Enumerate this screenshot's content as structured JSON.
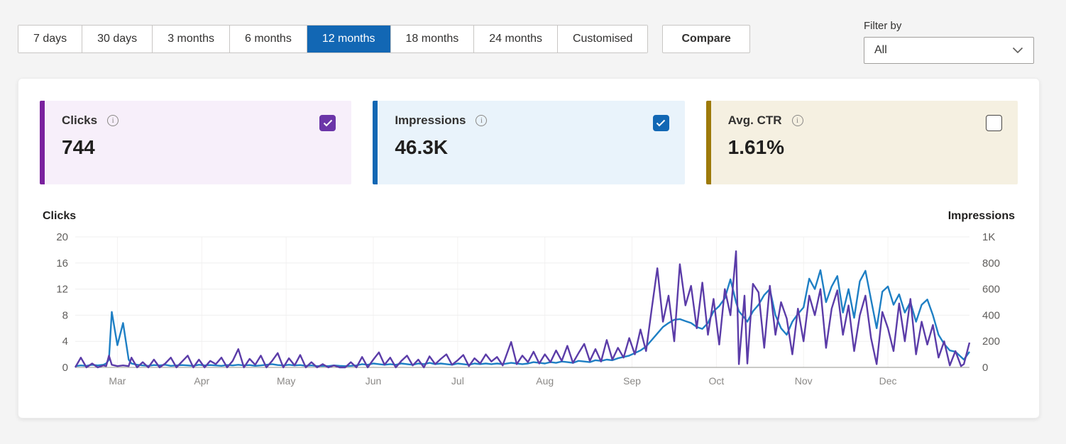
{
  "toolbar": {
    "date_ranges": [
      {
        "label": "7 days",
        "selected": false
      },
      {
        "label": "30 days",
        "selected": false
      },
      {
        "label": "3 months",
        "selected": false
      },
      {
        "label": "6 months",
        "selected": false
      },
      {
        "label": "12 months",
        "selected": true
      },
      {
        "label": "18 months",
        "selected": false
      },
      {
        "label": "24 months",
        "selected": false
      },
      {
        "label": "Customised",
        "selected": false
      }
    ],
    "selected_bg": "#1267b4",
    "compare_label": "Compare",
    "filter": {
      "label": "Filter by",
      "value": "All"
    }
  },
  "cards": [
    {
      "label": "Clicks",
      "value": "744",
      "checked": true,
      "accent": "#7a219e",
      "bg": "#f7effa",
      "checkbox_color": "#6b35a8",
      "info_icon": "info-icon"
    },
    {
      "label": "Impressions",
      "value": "46.3K",
      "checked": true,
      "accent": "#1267b4",
      "bg": "#e9f3fb",
      "checkbox_color": "#1267b4",
      "info_icon": "info-icon"
    },
    {
      "label": "Avg. CTR",
      "value": "1.61%",
      "checked": false,
      "accent": "#9d7a0a",
      "bg": "#f5f0e1",
      "checkbox_color": null,
      "info_icon": "info-icon"
    }
  ],
  "chart": {
    "left_axis_label": "Clicks",
    "right_axis_label": "Impressions"
  },
  "chart_data": {
    "type": "line",
    "title": "Clicks and Impressions over 12 months (daily)",
    "legend_position": "none",
    "grid": "horizontal",
    "series_meta": [
      {
        "name": "Clicks",
        "color": "#5b3ca8",
        "axis": "left",
        "ylim": [
          0,
          20
        ]
      },
      {
        "name": "Impressions",
        "color": "#1e7fc4",
        "axis": "right",
        "ylim": [
          0,
          1000
        ]
      }
    ],
    "left_ticks": [
      0,
      4,
      8,
      12,
      16,
      20
    ],
    "right_tick_labels": [
      "0",
      "200",
      "400",
      "600",
      "800",
      "1K"
    ],
    "x_domain_days": [
      0,
      318
    ],
    "months": [
      {
        "label": "Mar",
        "day": 15
      },
      {
        "label": "Apr",
        "day": 45
      },
      {
        "label": "May",
        "day": 75
      },
      {
        "label": "Jun",
        "day": 106
      },
      {
        "label": "Jul",
        "day": 136
      },
      {
        "label": "Aug",
        "day": 167
      },
      {
        "label": "Sep",
        "day": 198
      },
      {
        "label": "Oct",
        "day": 228
      },
      {
        "label": "Nov",
        "day": 259
      },
      {
        "label": "Dec",
        "day": 289
      }
    ],
    "points_format": [
      "day",
      "clicks",
      "impressions"
    ],
    "points": [
      [
        0,
        0,
        10
      ],
      [
        2,
        1.5,
        15
      ],
      [
        4,
        0,
        12
      ],
      [
        6,
        0.6,
        20
      ],
      [
        8,
        0,
        15
      ],
      [
        10,
        0.3,
        20
      ],
      [
        11,
        0.2,
        30
      ],
      [
        12,
        1.8,
        60
      ],
      [
        13,
        0.4,
        425
      ],
      [
        15,
        0.2,
        170
      ],
      [
        17,
        0.3,
        340
      ],
      [
        19,
        0.2,
        60
      ],
      [
        20,
        1.5,
        30
      ],
      [
        22,
        0,
        20
      ],
      [
        24,
        0.8,
        15
      ],
      [
        26,
        0,
        12
      ],
      [
        28,
        1.2,
        18
      ],
      [
        30,
        0,
        15
      ],
      [
        32,
        0.6,
        20
      ],
      [
        34,
        1.5,
        12
      ],
      [
        36,
        0,
        15
      ],
      [
        38,
        0.9,
        18
      ],
      [
        40,
        1.8,
        15
      ],
      [
        42,
        0,
        12
      ],
      [
        44,
        1.2,
        20
      ],
      [
        46,
        0,
        15
      ],
      [
        48,
        1,
        18
      ],
      [
        50,
        0.5,
        15
      ],
      [
        52,
        1.5,
        12
      ],
      [
        54,
        0,
        18
      ],
      [
        56,
        1,
        15
      ],
      [
        58,
        2.8,
        20
      ],
      [
        60,
        0,
        15
      ],
      [
        62,
        1.3,
        18
      ],
      [
        64,
        0.4,
        12
      ],
      [
        66,
        1.8,
        15
      ],
      [
        68,
        0,
        20
      ],
      [
        70,
        1,
        25
      ],
      [
        72,
        2.2,
        18
      ],
      [
        74,
        0,
        15
      ],
      [
        76,
        1.4,
        20
      ],
      [
        78,
        0.3,
        15
      ],
      [
        80,
        1.9,
        18
      ],
      [
        82,
        0,
        12
      ],
      [
        84,
        0.8,
        15
      ],
      [
        86,
        0,
        10
      ],
      [
        88,
        0.5,
        12
      ],
      [
        90,
        0,
        10
      ],
      [
        92,
        0.3,
        15
      ],
      [
        94,
        0,
        12
      ],
      [
        96,
        0,
        10
      ],
      [
        98,
        0.8,
        12
      ],
      [
        100,
        0,
        15
      ],
      [
        102,
        1.6,
        25
      ],
      [
        104,
        0,
        20
      ],
      [
        106,
        1.2,
        30
      ],
      [
        108,
        2.3,
        25
      ],
      [
        110,
        0.4,
        20
      ],
      [
        112,
        1.5,
        25
      ],
      [
        114,
        0,
        20
      ],
      [
        116,
        1,
        30
      ],
      [
        118,
        1.8,
        25
      ],
      [
        120,
        0.3,
        20
      ],
      [
        122,
        1.2,
        30
      ],
      [
        124,
        0,
        25
      ],
      [
        126,
        1.7,
        35
      ],
      [
        128,
        0.5,
        25
      ],
      [
        130,
        1.3,
        30
      ],
      [
        132,
        2,
        25
      ],
      [
        134,
        0.4,
        20
      ],
      [
        136,
        1.1,
        30
      ],
      [
        138,
        1.9,
        25
      ],
      [
        140,
        0.2,
        20
      ],
      [
        142,
        1.4,
        30
      ],
      [
        144,
        0.6,
        25
      ],
      [
        146,
        2,
        30
      ],
      [
        148,
        0.9,
        25
      ],
      [
        150,
        1.6,
        30
      ],
      [
        152,
        0.3,
        25
      ],
      [
        155,
        3.9,
        35
      ],
      [
        157,
        0.5,
        30
      ],
      [
        159,
        1.8,
        25
      ],
      [
        161,
        0.8,
        30
      ],
      [
        163,
        2.4,
        40
      ],
      [
        165,
        0.6,
        35
      ],
      [
        167,
        2,
        30
      ],
      [
        169,
        0.8,
        40
      ],
      [
        171,
        2.6,
        35
      ],
      [
        173,
        1,
        45
      ],
      [
        175,
        3.3,
        40
      ],
      [
        177,
        0.7,
        35
      ],
      [
        179,
        2.2,
        50
      ],
      [
        181,
        3.6,
        45
      ],
      [
        183,
        1,
        40
      ],
      [
        185,
        2.8,
        55
      ],
      [
        187,
        0.9,
        50
      ],
      [
        189,
        4.2,
        60
      ],
      [
        191,
        1.2,
        55
      ],
      [
        193,
        3,
        70
      ],
      [
        195,
        1.5,
        80
      ],
      [
        197,
        4.5,
        90
      ],
      [
        199,
        2,
        110
      ],
      [
        201,
        5.8,
        130
      ],
      [
        203,
        2.5,
        160
      ],
      [
        205,
        9,
        210
      ],
      [
        207,
        15.2,
        260
      ],
      [
        209,
        7,
        310
      ],
      [
        211,
        11,
        340
      ],
      [
        213,
        4,
        365
      ],
      [
        215,
        15.8,
        370
      ],
      [
        217,
        9.5,
        355
      ],
      [
        219,
        12.5,
        340
      ],
      [
        221,
        6,
        310
      ],
      [
        223,
        13,
        295
      ],
      [
        225,
        5,
        340
      ],
      [
        227,
        10.5,
        430
      ],
      [
        229,
        3.5,
        470
      ],
      [
        231,
        12,
        530
      ],
      [
        233,
        8,
        675
      ],
      [
        235,
        17.8,
        500
      ],
      [
        236,
        0.5,
        430
      ],
      [
        238,
        11,
        380
      ],
      [
        239,
        0.6,
        350
      ],
      [
        241,
        12.8,
        430
      ],
      [
        243,
        11.5,
        480
      ],
      [
        245,
        3,
        555
      ],
      [
        247,
        12.5,
        600
      ],
      [
        249,
        5,
        400
      ],
      [
        251,
        10,
        300
      ],
      [
        253,
        7.5,
        250
      ],
      [
        255,
        2,
        350
      ],
      [
        257,
        9,
        410
      ],
      [
        259,
        4,
        460
      ],
      [
        261,
        11,
        680
      ],
      [
        263,
        8,
        600
      ],
      [
        265,
        12,
        745
      ],
      [
        267,
        3,
        500
      ],
      [
        269,
        9,
        620
      ],
      [
        271,
        11.8,
        700
      ],
      [
        273,
        5,
        420
      ],
      [
        275,
        9.5,
        600
      ],
      [
        277,
        2.5,
        380
      ],
      [
        279,
        8,
        660
      ],
      [
        281,
        11,
        740
      ],
      [
        283,
        4.5,
        520
      ],
      [
        285,
        0.5,
        300
      ],
      [
        287,
        8.5,
        580
      ],
      [
        289,
        6,
        620
      ],
      [
        291,
        2.5,
        480
      ],
      [
        293,
        9.8,
        560
      ],
      [
        295,
        4,
        420
      ],
      [
        297,
        10.5,
        500
      ],
      [
        299,
        2,
        350
      ],
      [
        301,
        7,
        480
      ],
      [
        303,
        3.5,
        520
      ],
      [
        305,
        6.5,
        400
      ],
      [
        307,
        1.5,
        250
      ],
      [
        309,
        4,
        180
      ],
      [
        311,
        0.3,
        130
      ],
      [
        313,
        2.5,
        120
      ],
      [
        315,
        0.2,
        80
      ],
      [
        316,
        0.5,
        60
      ],
      [
        318,
        3.8,
        120
      ]
    ]
  }
}
